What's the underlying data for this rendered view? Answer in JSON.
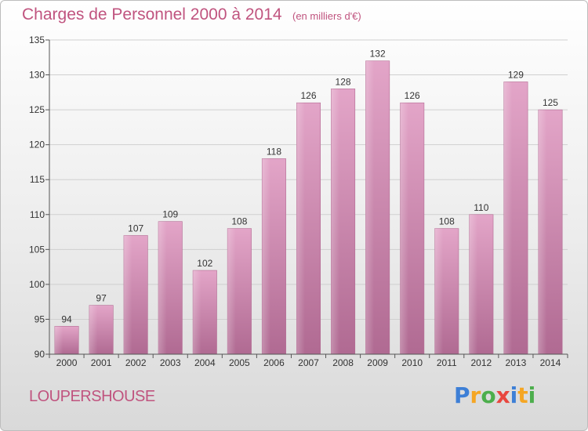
{
  "header": {
    "title": "Charges de Personnel 2000 à 2014",
    "subtitle": "(en milliers d'€)"
  },
  "footer": {
    "place": "LOUPERSHOUSE",
    "logo_letters": [
      "P",
      "r",
      "o",
      "x",
      "i",
      "t",
      "i"
    ],
    "logo_colors": [
      "#3d7fd6",
      "#f5a623",
      "#4cae4c",
      "#e8473f",
      "#3d7fd6",
      "#f5a623",
      "#4cae4c"
    ]
  },
  "chart_data": {
    "type": "bar",
    "title": "Charges de Personnel 2000 à 2014",
    "subtitle": "(en milliers d'€)",
    "categories": [
      "2000",
      "2001",
      "2002",
      "2003",
      "2004",
      "2005",
      "2006",
      "2007",
      "2008",
      "2009",
      "2010",
      "2011",
      "2012",
      "2013",
      "2014"
    ],
    "values": [
      94,
      97,
      107,
      109,
      102,
      108,
      118,
      126,
      128,
      132,
      126,
      108,
      110,
      129,
      125
    ],
    "ylim": [
      90,
      135
    ],
    "yticks": [
      90,
      95,
      100,
      105,
      110,
      115,
      120,
      125,
      130,
      135
    ],
    "grid": true,
    "bar_color": "#d98fb7",
    "bar_color_dark": "#b8678f"
  }
}
